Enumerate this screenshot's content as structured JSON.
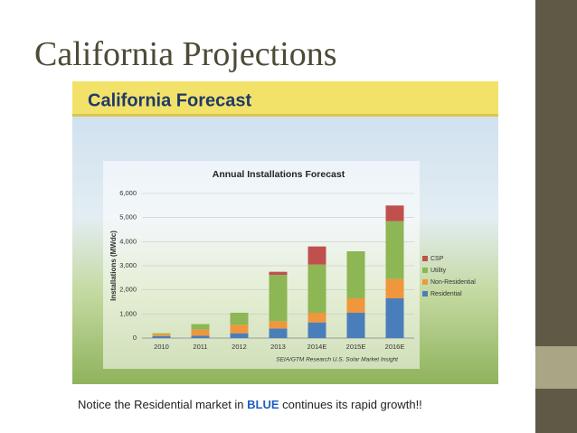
{
  "slide": {
    "title": "California Projections",
    "caption": {
      "before": "Notice the Residential market in ",
      "highlight": "BLUE",
      "after": " continues its rapid growth!!"
    }
  },
  "chart_data": {
    "type": "stacked_bar",
    "banner": "California Forecast",
    "title": "Annual Installations Forecast",
    "y_label": "Installations (MWdc)",
    "source": "SEIA/GTM Research U.S. Solar Market Insight",
    "categories": [
      "2010",
      "2011",
      "2012",
      "2013",
      "2014E",
      "2015E",
      "2016E"
    ],
    "series": [
      {
        "name": "Residential",
        "color": "#4a7ebb",
        "values": [
          80,
          100,
          200,
          400,
          650,
          1050,
          1650
        ]
      },
      {
        "name": "Non-Residential",
        "color": "#f0963c",
        "values": [
          80,
          250,
          350,
          300,
          400,
          600,
          800
        ]
      },
      {
        "name": "Utility",
        "color": "#8db654",
        "values": [
          40,
          230,
          500,
          1920,
          2000,
          1950,
          2400
        ]
      },
      {
        "name": "CSP",
        "color": "#c0504d",
        "values": [
          0,
          0,
          0,
          130,
          750,
          0,
          650
        ]
      }
    ],
    "ylim": [
      0,
      6000
    ],
    "yticks": [
      0,
      {
        "value": 1000,
        "label": "1,000"
      },
      {
        "value": 2000,
        "label": "2,000"
      },
      {
        "value": 3000,
        "label": "3,000"
      },
      {
        "value": 4000,
        "label": "4,000"
      },
      {
        "value": 5000,
        "label": "5,000"
      },
      {
        "value": 6000,
        "label": "6,000"
      }
    ],
    "grid": true
  }
}
